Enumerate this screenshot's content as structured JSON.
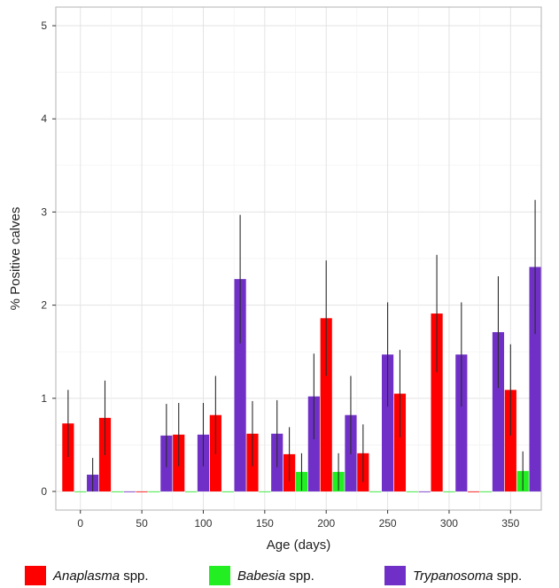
{
  "chart_data": {
    "type": "bar",
    "title": "",
    "xlabel": "Age (days)",
    "ylabel": "% Positive calves",
    "xlim": [
      -20,
      375
    ],
    "ylim": [
      -0.2,
      5.2
    ],
    "x_ticks": [
      0,
      50,
      100,
      150,
      200,
      250,
      300,
      350
    ],
    "y_ticks": [
      0,
      1,
      2,
      3,
      4,
      5
    ],
    "x": [
      0,
      30,
      60,
      90,
      120,
      150,
      180,
      210,
      240,
      270,
      300,
      330,
      360
    ],
    "grid": true,
    "legend_position": "bottom",
    "series": [
      {
        "name": "Anaplasma",
        "suffix": " spp.",
        "color": "#ff0000",
        "values": [
          0.73,
          0.79,
          0.0,
          0.61,
          0.82,
          0.62,
          0.4,
          1.86,
          0.41,
          1.05,
          1.91,
          0.0,
          1.09
        ],
        "err": [
          0.36,
          0.4,
          0.0,
          0.34,
          0.42,
          0.35,
          0.29,
          0.62,
          0.31,
          0.47,
          0.63,
          0.0,
          0.49
        ]
      },
      {
        "name": "Babesia",
        "suffix": " spp.",
        "color": "#22ee22",
        "values": [
          0.0,
          0.0,
          0.0,
          0.0,
          0.0,
          0.0,
          0.21,
          0.21,
          0.0,
          0.0,
          0.0,
          0.0,
          0.22
        ],
        "err": [
          0.0,
          0.0,
          0.0,
          0.0,
          0.0,
          0.0,
          0.2,
          0.2,
          0.0,
          0.0,
          0.0,
          0.0,
          0.21
        ]
      },
      {
        "name": "Trypanosoma",
        "suffix": " spp.",
        "color": "#7030c8",
        "values": [
          0.18,
          0.0,
          0.6,
          0.61,
          2.28,
          0.62,
          1.02,
          0.82,
          1.47,
          0.0,
          1.47,
          1.71,
          2.41
        ],
        "err": [
          0.18,
          0.0,
          0.34,
          0.34,
          0.69,
          0.36,
          0.46,
          0.42,
          0.56,
          0.0,
          0.56,
          0.6,
          0.72
        ]
      }
    ]
  }
}
